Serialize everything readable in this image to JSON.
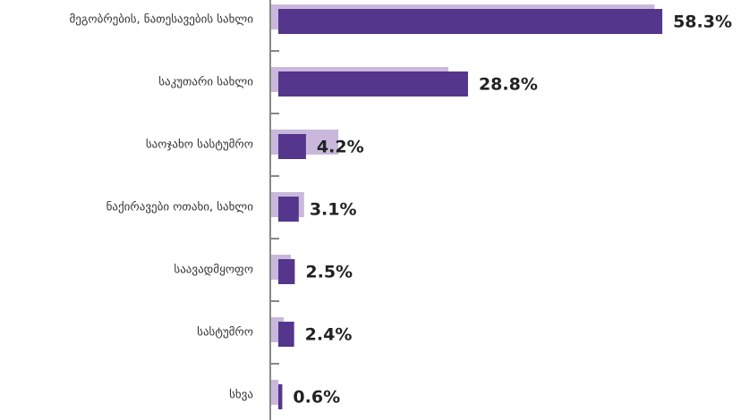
{
  "chart_data": {
    "type": "hbar",
    "categories": [
      "მეგობრების, ნათესავების სახლი",
      "საკუთარი სახლი",
      "საოჯახო სასტუმრო",
      "ნაქირავები ოთახი, სახლი",
      "საავადმყოფო",
      "სასტუმრო",
      "სხვა"
    ],
    "series": [
      {
        "color": "#c9b8dc",
        "values": [
          58.2,
          26.9,
          10.2,
          5.0,
          3.0,
          1.9,
          1.1
        ]
      },
      {
        "color": "#54368c",
        "values": [
          58.3,
          28.8,
          4.2,
          3.1,
          2.5,
          2.4,
          0.6
        ],
        "value_labels": [
          "58.3%",
          "28.8%",
          "4.2%",
          "3.1%",
          "2.5%",
          "2.4%",
          "0.6%"
        ]
      }
    ]
  }
}
